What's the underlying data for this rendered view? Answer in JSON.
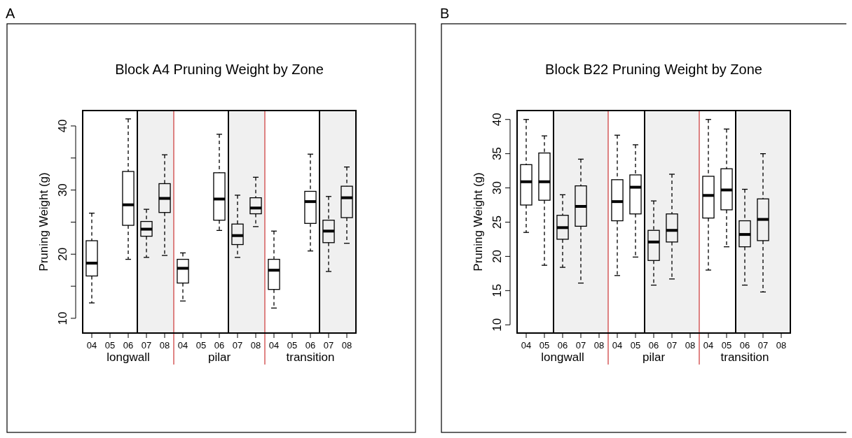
{
  "chart_data": [
    {
      "type": "box",
      "title": "Block A4 Pruning Weight by Zone",
      "ylabel": "Pruning Weight (g)",
      "annotations": [
        "A",
        "longwall",
        "pilar",
        "transition"
      ],
      "categories": [
        "04",
        "05",
        "06",
        "07",
        "08",
        "04",
        "05",
        "06",
        "07",
        "08",
        "04",
        "05",
        "06",
        "07",
        "08"
      ],
      "boxes": [
        {
          "low": 12.4,
          "q1": 16.6,
          "median": 18.6,
          "q3": 22.1,
          "high": 26.4
        },
        null,
        {
          "low": 19.2,
          "q1": 24.5,
          "median": 27.7,
          "q3": 32.9,
          "high": 41.1
        },
        {
          "low": 19.5,
          "q1": 22.8,
          "median": 23.9,
          "q3": 25.1,
          "high": 27.0
        },
        {
          "low": 19.8,
          "q1": 26.5,
          "median": 28.7,
          "q3": 31.0,
          "high": 35.5
        },
        {
          "low": 12.7,
          "q1": 15.5,
          "median": 17.8,
          "q3": 19.2,
          "high": 20.2
        },
        null,
        {
          "low": 23.7,
          "q1": 25.3,
          "median": 28.6,
          "q3": 32.7,
          "high": 38.7
        },
        {
          "low": 19.5,
          "q1": 21.5,
          "median": 22.9,
          "q3": 24.7,
          "high": 29.2
        },
        {
          "low": 24.3,
          "q1": 26.3,
          "median": 27.2,
          "q3": 28.8,
          "high": 32.0
        },
        {
          "low": 11.6,
          "q1": 14.5,
          "median": 17.5,
          "q3": 19.2,
          "high": 23.6
        },
        null,
        {
          "low": 20.5,
          "q1": 24.8,
          "median": 28.2,
          "q3": 29.8,
          "high": 35.6
        },
        {
          "low": 17.3,
          "q1": 21.8,
          "median": 23.6,
          "q3": 25.3,
          "high": 29.0
        },
        {
          "low": 21.7,
          "q1": 25.7,
          "median": 28.8,
          "q3": 30.6,
          "high": 33.6
        }
      ],
      "ylim": [
        7.7,
        42.4
      ],
      "yticks": [
        10,
        {
          "value": 15,
          "label": null
        },
        20,
        {
          "value": 25,
          "label": null
        },
        30,
        {
          "value": 35,
          "label": null
        },
        40
      ]
    },
    {
      "type": "box",
      "title": "Block B22 Pruning Weight by Zone",
      "ylabel": "Pruning Weight (g)",
      "annotations": [
        "B",
        "longwall",
        "pilar",
        "transition"
      ],
      "categories": [
        "04",
        "05",
        "06",
        "07",
        "08",
        "04",
        "05",
        "06",
        "07",
        "08",
        "04",
        "05",
        "06",
        "07",
        "08"
      ],
      "boxes": [
        {
          "low": 23.5,
          "q1": 27.5,
          "median": 30.9,
          "q3": 33.4,
          "high": 40.0
        },
        {
          "low": 18.7,
          "q1": 28.2,
          "median": 30.9,
          "q3": 35.1,
          "high": 37.6
        },
        {
          "low": 18.4,
          "q1": 22.5,
          "median": 24.2,
          "q3": 26.0,
          "high": 29.0
        },
        {
          "low": 16.1,
          "q1": 24.4,
          "median": 27.3,
          "q3": 30.3,
          "high": 34.2
        },
        null,
        {
          "low": 17.2,
          "q1": 25.2,
          "median": 28.0,
          "q3": 31.2,
          "high": 37.7
        },
        {
          "low": 19.9,
          "q1": 26.2,
          "median": 30.1,
          "q3": 31.9,
          "high": 36.3
        },
        {
          "low": 15.8,
          "q1": 19.4,
          "median": 22.1,
          "q3": 23.8,
          "high": 28.1
        },
        {
          "low": 16.7,
          "q1": 22.1,
          "median": 23.8,
          "q3": 26.2,
          "high": 32.0
        },
        null,
        {
          "low": 18.0,
          "q1": 25.6,
          "median": 28.9,
          "q3": 31.7,
          "high": 40.0
        },
        {
          "low": 21.4,
          "q1": 26.8,
          "median": 29.7,
          "q3": 32.8,
          "high": 38.6
        },
        {
          "low": 15.8,
          "q1": 21.4,
          "median": 23.2,
          "q3": 25.2,
          "high": 29.8
        },
        {
          "low": 14.8,
          "q1": 22.3,
          "median": 25.4,
          "q3": 28.4,
          "high": 35.0
        },
        null
      ],
      "ylim": [
        8.8,
        41.3
      ],
      "yticks": [
        10,
        15,
        20,
        25,
        30,
        35,
        40
      ]
    }
  ]
}
